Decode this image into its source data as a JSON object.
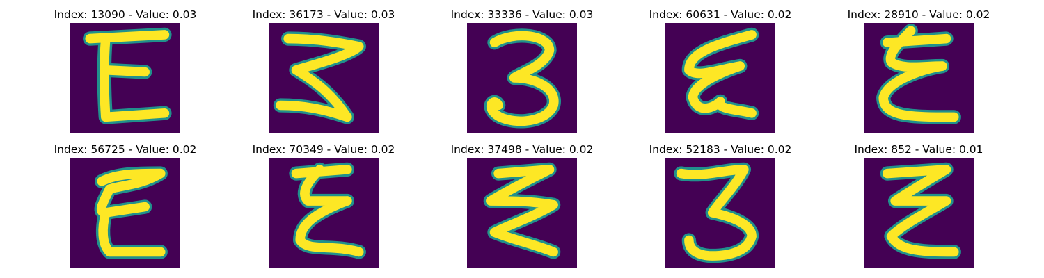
{
  "chart_data": {
    "type": "image_grid",
    "colormap": "viridis",
    "colors": {
      "background": "#440154",
      "edge": "#21918c",
      "stroke": "#fde725"
    },
    "panels": [
      {
        "index": "13090",
        "value": "0.03",
        "title": "Index: 13090 - Value: 0.03",
        "glyph": "E-upright"
      },
      {
        "index": "36173",
        "value": "0.03",
        "title": "Index: 36173 - Value: 0.03",
        "glyph": "3-mirror-zigzag"
      },
      {
        "index": "33336",
        "value": "0.03",
        "title": "Index: 33336 - Value: 0.03",
        "glyph": "3"
      },
      {
        "index": "60631",
        "value": "0.02",
        "title": "Index: 60631 - Value: 0.02",
        "glyph": "E-slanted"
      },
      {
        "index": "28910",
        "value": "0.02",
        "title": "Index: 28910 - Value: 0.02",
        "glyph": "E-cursive"
      },
      {
        "index": "56725",
        "value": "0.02",
        "title": "Index: 56725 - Value: 0.02",
        "glyph": "E-bold"
      },
      {
        "index": "70349",
        "value": "0.02",
        "title": "Index: 70349 - Value: 0.02",
        "glyph": "E-zigzag"
      },
      {
        "index": "37498",
        "value": "0.02",
        "title": "Index: 37498 - Value: 0.02",
        "glyph": "zigzag"
      },
      {
        "index": "52183",
        "value": "0.02",
        "title": "Index: 52183 - Value: 0.02",
        "glyph": "3-tall"
      },
      {
        "index": "852",
        "value": "0.01",
        "title": "Index: 852 - Value: 0.01",
        "glyph": "Z-double"
      }
    ]
  }
}
